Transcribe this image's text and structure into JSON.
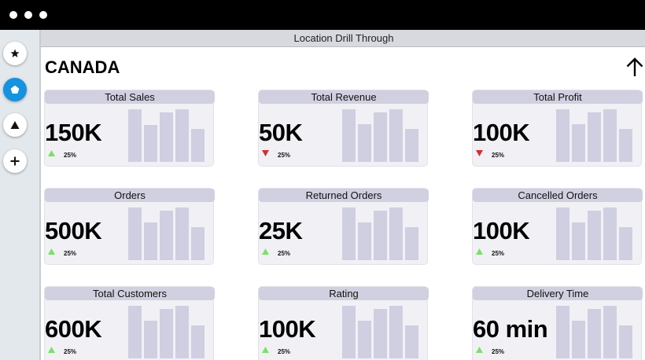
{
  "window": {
    "controls": [
      "close",
      "minimize",
      "maximize"
    ]
  },
  "sidebar": {
    "buttons": [
      {
        "icon": "star-icon",
        "active": false
      },
      {
        "icon": "pentagon-icon",
        "active": true
      },
      {
        "icon": "triangle-icon",
        "active": false
      },
      {
        "icon": "plus-icon",
        "active": false
      }
    ]
  },
  "header": {
    "title": "Location Drill Through"
  },
  "page": {
    "country": "CANADA",
    "up_icon": "arrow-up-icon"
  },
  "colors": {
    "up": "#7be06a",
    "down": "#d32f2f",
    "bar": "#cfcfe1",
    "title_bg": "#d0d0e0",
    "accent": "#1592e0"
  },
  "cards": [
    {
      "title": "Total Sales",
      "value": "150K",
      "trend": "up",
      "change": "25%",
      "bar_levels": [
        1.0,
        0.7,
        0.94,
        1.0,
        0.63
      ]
    },
    {
      "title": "Total Revenue",
      "value": "50K",
      "trend": "down",
      "change": "25%",
      "bar_levels": [
        1.0,
        0.72,
        0.94,
        1.0,
        0.63
      ]
    },
    {
      "title": "Total Profit",
      "value": "100K",
      "trend": "down",
      "change": "25%",
      "bar_levels": [
        1.0,
        0.72,
        0.94,
        1.0,
        0.63
      ]
    },
    {
      "title": "Orders",
      "value": "500K",
      "trend": "up",
      "change": "25%",
      "bar_levels": [
        1.0,
        0.72,
        0.94,
        1.0,
        0.63
      ]
    },
    {
      "title": "Returned Orders",
      "value": "25K",
      "trend": "up",
      "change": "25%",
      "bar_levels": [
        1.0,
        0.72,
        0.94,
        1.0,
        0.63
      ]
    },
    {
      "title": "Cancelled Orders",
      "value": "100K",
      "trend": "up",
      "change": "25%",
      "bar_levels": [
        1.0,
        0.72,
        0.94,
        1.0,
        0.63
      ]
    },
    {
      "title": "Total Customers",
      "value": "600K",
      "trend": "up",
      "change": "25%",
      "bar_levels": [
        1.0,
        0.72,
        0.94,
        1.0,
        0.63
      ]
    },
    {
      "title": "Rating",
      "value": "100K",
      "trend": "up",
      "change": "25%",
      "bar_levels": [
        1.0,
        0.72,
        0.94,
        1.0,
        0.63
      ]
    },
    {
      "title": "Delivery Time",
      "value": "60 min",
      "trend": "up",
      "change": "25%",
      "bar_levels": [
        1.0,
        0.72,
        0.94,
        1.0,
        0.63
      ]
    }
  ]
}
